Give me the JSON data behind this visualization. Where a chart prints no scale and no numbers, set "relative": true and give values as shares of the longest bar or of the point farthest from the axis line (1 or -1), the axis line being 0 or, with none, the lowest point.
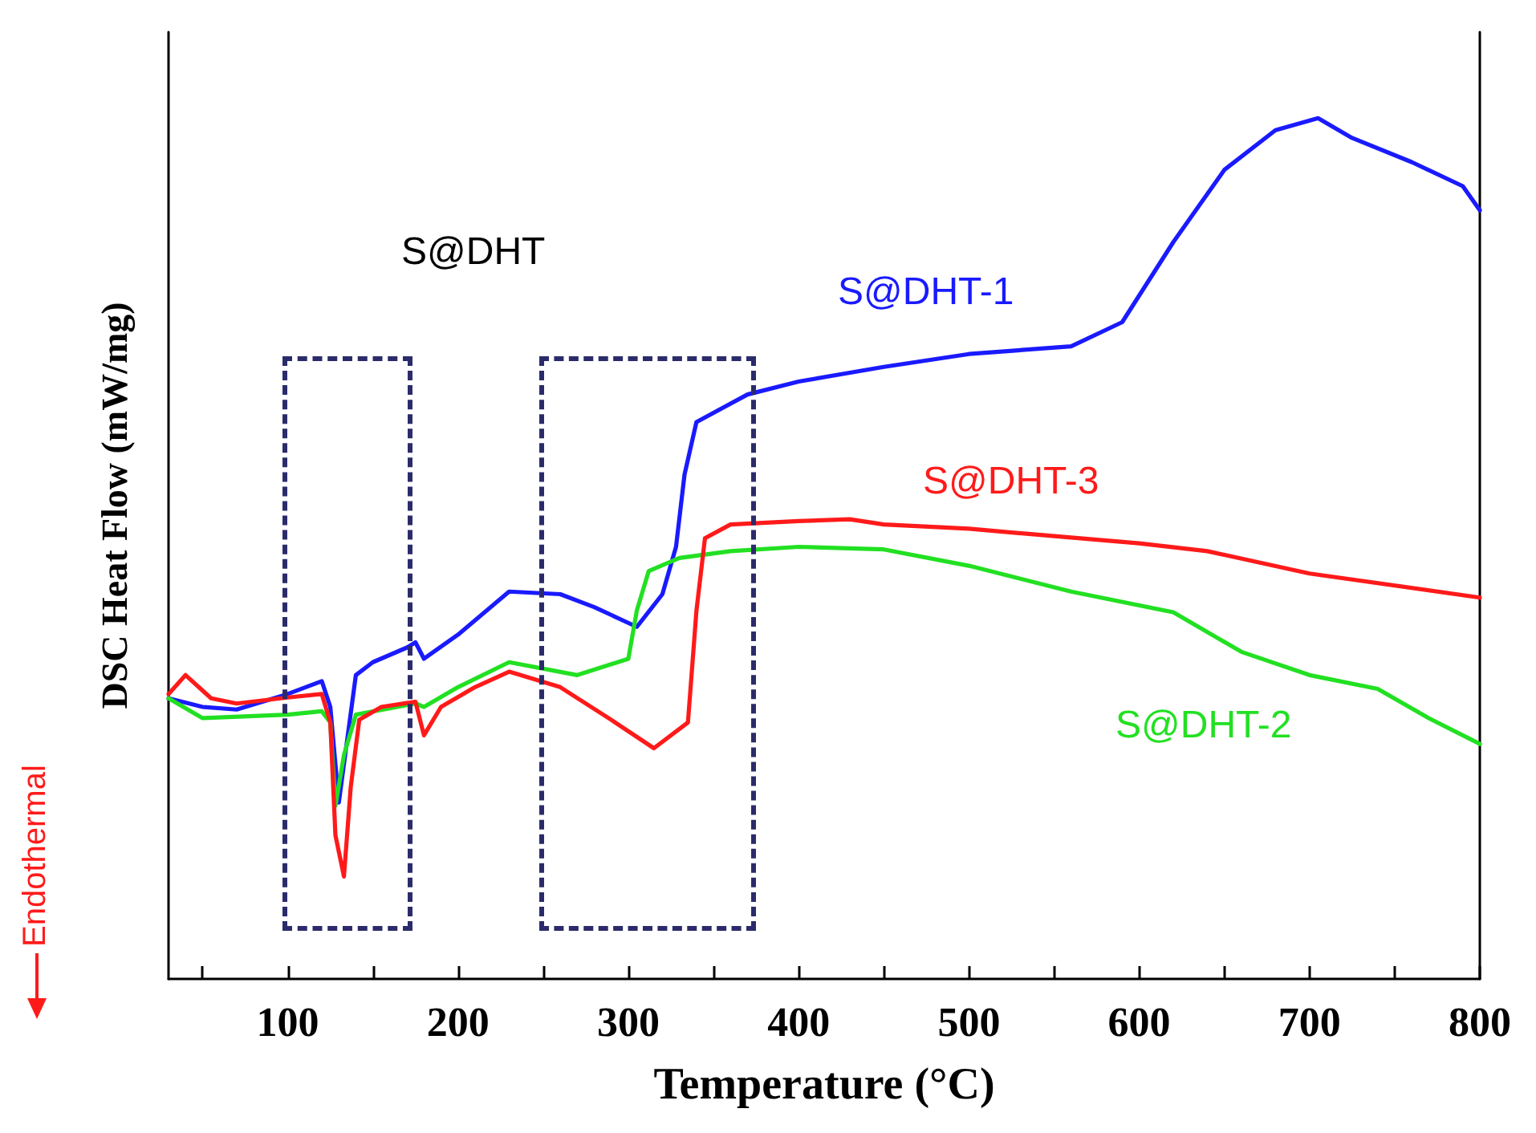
{
  "chart_data": {
    "type": "line",
    "relative": true,
    "xlabel": "Temperature (°C)",
    "ylabel": "DSC Heat Flow (mW/mg)",
    "annotations": [
      "S@DHT",
      "Endothermal"
    ],
    "xlim": [
      30,
      800
    ],
    "xticks": [
      {
        "value": 50,
        "label": null
      },
      100,
      {
        "value": 150,
        "label": null
      },
      200,
      {
        "value": 250,
        "label": null
      },
      300,
      {
        "value": 350,
        "label": null
      },
      400,
      {
        "value": 450,
        "label": null
      },
      500,
      {
        "value": 550,
        "label": null
      },
      600,
      {
        "value": 650,
        "label": null
      },
      700,
      {
        "value": 750,
        "label": null
      },
      800
    ],
    "legend": false,
    "grid": false,
    "marker": "none",
    "line_style": "solid",
    "series": [
      {
        "name": "S@DHT-1",
        "color": "#1a1aff",
        "x": [
          30,
          50,
          70,
          100,
          120,
          125,
          130,
          135,
          140,
          150,
          170,
          175,
          180,
          200,
          230,
          260,
          280,
          305,
          320,
          328,
          333,
          340,
          370,
          400,
          450,
          500,
          560,
          590,
          620,
          650,
          680,
          705,
          725,
          760,
          790,
          800
        ],
        "values": [
          0.326,
          0.316,
          0.313,
          0.331,
          0.346,
          0.316,
          0.205,
          0.279,
          0.353,
          0.368,
          0.385,
          0.391,
          0.372,
          0.4,
          0.45,
          0.447,
          0.432,
          0.409,
          0.447,
          0.502,
          0.586,
          0.647,
          0.679,
          0.694,
          0.711,
          0.726,
          0.735,
          0.763,
          0.856,
          0.94,
          0.986,
          1,
          0.977,
          0.949,
          0.921,
          0.893
        ]
      },
      {
        "name": "S@DHT-2",
        "color": "#22e022",
        "x": [
          30,
          50,
          100,
          120,
          125,
          128,
          133,
          140,
          175,
          180,
          200,
          230,
          270,
          300,
          305,
          312,
          330,
          360,
          400,
          450,
          500,
          560,
          620,
          660,
          700,
          740,
          770,
          800
        ],
        "values": [
          0.326,
          0.303,
          0.307,
          0.311,
          0.298,
          0.201,
          0.26,
          0.307,
          0.32,
          0.316,
          0.339,
          0.368,
          0.353,
          0.372,
          0.428,
          0.474,
          0.489,
          0.497,
          0.502,
          0.499,
          0.48,
          0.45,
          0.426,
          0.38,
          0.353,
          0.337,
          0.303,
          0.273
        ]
      },
      {
        "name": "S@DHT-3",
        "color": "#ff1a1a",
        "x": [
          30,
          40,
          55,
          70,
          100,
          120,
          125,
          128,
          133,
          137,
          142,
          155,
          175,
          180,
          190,
          210,
          230,
          260,
          290,
          315,
          335,
          340,
          345,
          360,
          400,
          430,
          450,
          500,
          600,
          640,
          700,
          800
        ],
        "values": [
          0.331,
          0.353,
          0.326,
          0.32,
          0.327,
          0.331,
          0.298,
          0.167,
          0.119,
          0.223,
          0.301,
          0.316,
          0.322,
          0.283,
          0.316,
          0.339,
          0.357,
          0.339,
          0.301,
          0.268,
          0.298,
          0.428,
          0.512,
          0.528,
          0.532,
          0.534,
          0.528,
          0.523,
          0.506,
          0.497,
          0.471,
          0.443
        ]
      }
    ]
  }
}
